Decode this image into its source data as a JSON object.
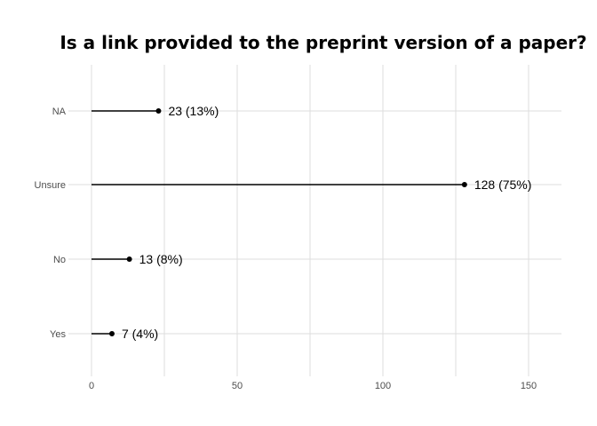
{
  "chart_data": {
    "type": "lollipop",
    "title": "Is a link provided to the preprint version of a paper?",
    "categories": [
      "NA",
      "Unsure",
      "No",
      "Yes"
    ],
    "values": [
      23,
      128,
      13,
      7
    ],
    "labels": [
      "23 (13%)",
      "128 (75%)",
      "13 (8%)",
      "7 (4%)"
    ],
    "xticks": [
      0,
      50,
      100,
      150
    ],
    "xlim": [
      0,
      161
    ],
    "grid": true,
    "colors": {
      "stem": "#000000",
      "grid": "#dedede",
      "text": "#4d4d4d"
    }
  }
}
